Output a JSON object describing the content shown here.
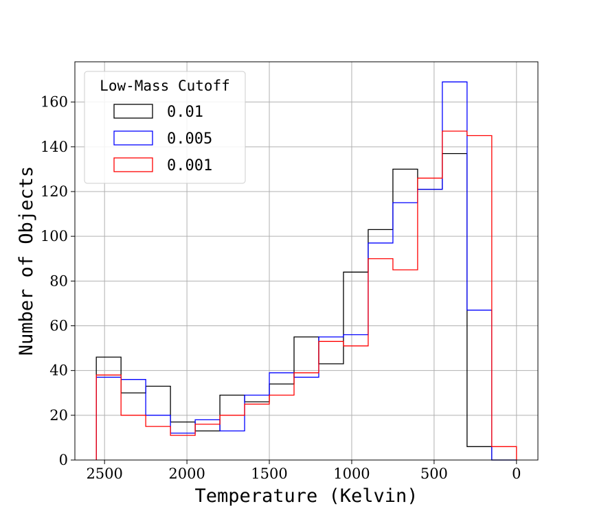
{
  "chart_data": {
    "type": "histogram-step",
    "xlabel": "Temperature (Kelvin)",
    "ylabel": "Number of Objects",
    "xlim": [
      2680,
      -130
    ],
    "ylim": [
      0,
      178
    ],
    "x_inverted": true,
    "grid": true,
    "x_ticks": [
      2500,
      2000,
      1500,
      1000,
      500,
      0
    ],
    "y_ticks": [
      0,
      20,
      40,
      60,
      80,
      100,
      120,
      140,
      160
    ],
    "bin_edges": [
      2550,
      2400,
      2250,
      2100,
      1950,
      1800,
      1650,
      1500,
      1350,
      1200,
      1050,
      900,
      750,
      600,
      450,
      300,
      150,
      0
    ],
    "legend": {
      "title": "Low-Mass Cutoff",
      "placement": "upper-left"
    },
    "series": [
      {
        "name": "0.01",
        "color": "#000000",
        "values": [
          46,
          30,
          33,
          17,
          13,
          29,
          26,
          34,
          55,
          43,
          84,
          103,
          130,
          121,
          137,
          6,
          0
        ]
      },
      {
        "name": "0.005",
        "color": "#0000ff",
        "values": [
          37,
          36,
          20,
          12,
          18,
          13,
          29,
          39,
          37,
          55,
          56,
          97,
          115,
          121,
          169,
          67,
          0
        ]
      },
      {
        "name": "0.001",
        "color": "#ff0000",
        "values": [
          38,
          20,
          15,
          11,
          16,
          20,
          25,
          29,
          39,
          53,
          51,
          90,
          85,
          126,
          147,
          145,
          6
        ]
      }
    ]
  }
}
